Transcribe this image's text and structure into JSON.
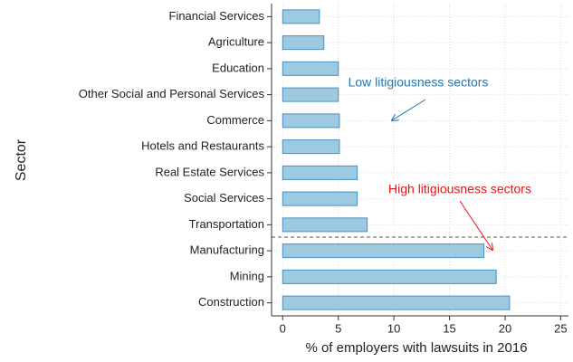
{
  "chart_data": {
    "type": "barh",
    "x_label": "% of employers with lawsuits in 2016",
    "y_label": "Sector",
    "categories": [
      "Financial Services",
      "Agriculture",
      "Education",
      "Other Social and Personal Services",
      "Commerce",
      "Hotels and Restaurants",
      "Real Estate Services",
      "Social Services",
      "Transportation",
      "Manufacturing",
      "Mining",
      "Construction"
    ],
    "values": [
      3.3,
      3.7,
      5.0,
      5.0,
      5.1,
      5.1,
      6.7,
      6.7,
      7.6,
      18.1,
      19.2,
      20.4
    ],
    "color": "#9ecae1",
    "edge_color": "#4a8fc0",
    "xlim": [
      -1,
      25.7
    ],
    "xticks": [
      0,
      5,
      10,
      15,
      20,
      25
    ],
    "grid": true,
    "annotations": [
      {
        "text": "Low litigiousness sectors",
        "color": "#1f77b4"
      },
      {
        "text": "High litigiousness sectors",
        "color": "#ee1111"
      }
    ]
  }
}
